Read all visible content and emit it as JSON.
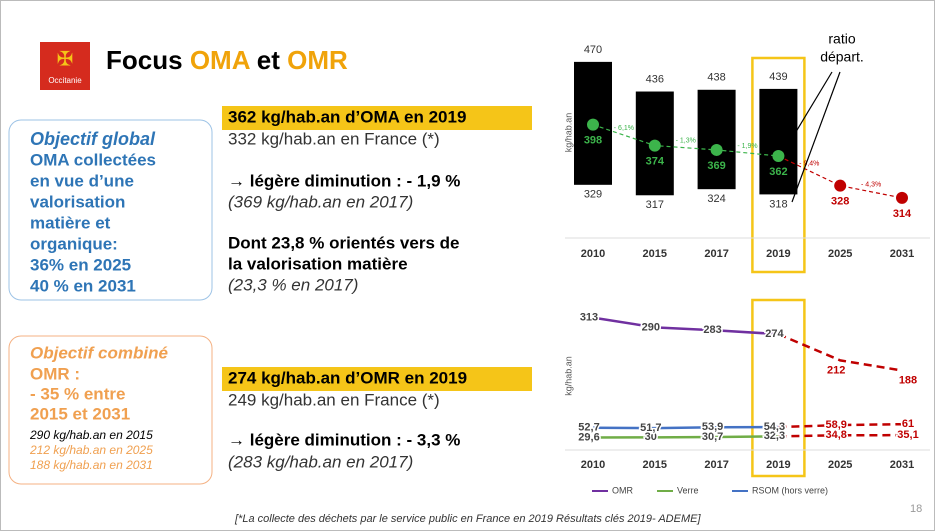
{
  "title": [
    "Focus",
    "OMA",
    "et",
    "OMR"
  ],
  "logo": "Occitanie",
  "objective_oma": {
    "heading": "Objectif global",
    "lines": [
      "OMA collectées",
      "en vue d’une",
      "valorisation",
      "matière et",
      "organique:",
      "36% en 2025",
      "40 % en 2031"
    ]
  },
  "oma_stats": {
    "headline": "362 kg/hab.an d’OMA en 2019",
    "france": "332 kg/hab.an en France (*)",
    "trend": "→ légère diminution : - 1,9 %",
    "previous": "(369 kg/hab.an en 2017)",
    "share": [
      "Dont 23,8 % orientés vers de",
      "la valorisation matière"
    ],
    "share_previous": "(23,3 % en 2017)"
  },
  "objective_omr": {
    "heading": "Objectif combiné",
    "lines": [
      "OMR :",
      " - 35 % entre",
      "2015 et 2031"
    ],
    "details": [
      "290 kg/hab.an en 2015",
      "212 kg/hab.an en 2025",
      "188 kg/hab.an en 2031"
    ]
  },
  "omr_stats": {
    "headline": "274 kg/hab.an d’OMR en 2019",
    "france": "249 kg/hab.an en France (*)",
    "trend": "→ légère diminution : - 3,3 %",
    "previous": "(283 kg/hab.an en 2017)"
  },
  "footnote": "[*La collecte des déchets par le service public en France en 2019 Résultats clés 2019- ADEME]",
  "page_number": "18",
  "chart_data": [
    {
      "type": "range_bar",
      "y_label": "kg/hab.an",
      "categories": [
        "2010",
        "2015",
        "2017",
        "2019",
        "2025",
        "2031"
      ],
      "ylim": [
        268,
        510
      ],
      "max": [
        470,
        436,
        438,
        439,
        null,
        null
      ],
      "min": [
        329,
        317,
        324,
        318,
        null,
        null
      ],
      "values": [
        398,
        374,
        369,
        362,
        328,
        314
      ],
      "change_labels": [
        "- 6,1%",
        "- 1,3%",
        "- 1,9%",
        "- 9,4%",
        "- 4,3%"
      ],
      "annotation": [
        "ratio",
        "départ."
      ],
      "bar_color": "#000000",
      "dot_color": "#3cb44b",
      "projection_color": "#c00000",
      "highlight_color": "#f5c518"
    },
    {
      "type": "line",
      "y_label": "kg/hab.an",
      "categories": [
        "2010",
        "2015",
        "2017",
        "2019",
        "2025",
        "2031"
      ],
      "ylim": [
        0,
        350
      ],
      "projection_color": "#c00000",
      "highlight_color": "#f5c518",
      "series": [
        {
          "name": "OMR",
          "color": "#7030a0",
          "values": [
            313,
            290,
            283,
            274,
            212,
            188
          ]
        },
        {
          "name": "Verre",
          "color": "#70ad47",
          "values": [
            29.6,
            30,
            30.7,
            32.3,
            34.8,
            35.1
          ],
          "value_labels": [
            "29,6",
            "30",
            "30,7",
            "32,3",
            "34,8",
            "35,1"
          ]
        },
        {
          "name": "RSOM (hors verre)",
          "color": "#4472c4",
          "values": [
            52.7,
            51.7,
            53.9,
            54.3,
            58.9,
            61
          ],
          "value_labels": [
            "52,7",
            "51,7",
            "53,9",
            "54,3",
            "58,9",
            "61"
          ]
        }
      ]
    }
  ]
}
